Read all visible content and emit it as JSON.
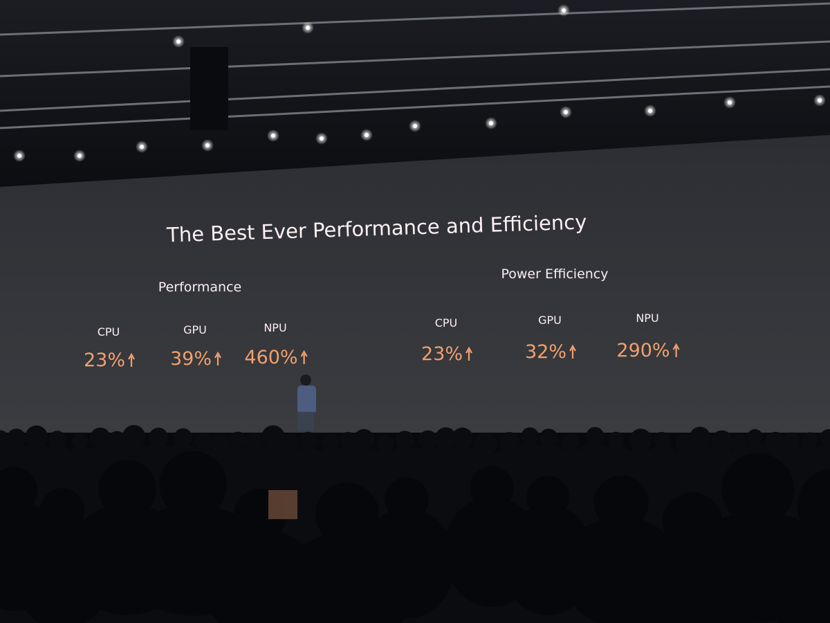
{
  "slide": {
    "title": "The Best Ever Performance and Efficiency",
    "sections": [
      {
        "heading": "Performance",
        "items": [
          {
            "label": "CPU",
            "value": "23%"
          },
          {
            "label": "GPU",
            "value": "39%"
          },
          {
            "label": "NPU",
            "value": "460%"
          }
        ]
      },
      {
        "heading": "Power Efficiency",
        "items": [
          {
            "label": "CPU",
            "value": "23%"
          },
          {
            "label": "GPU",
            "value": "32%"
          },
          {
            "label": "NPU",
            "value": "290%"
          }
        ]
      }
    ]
  }
}
